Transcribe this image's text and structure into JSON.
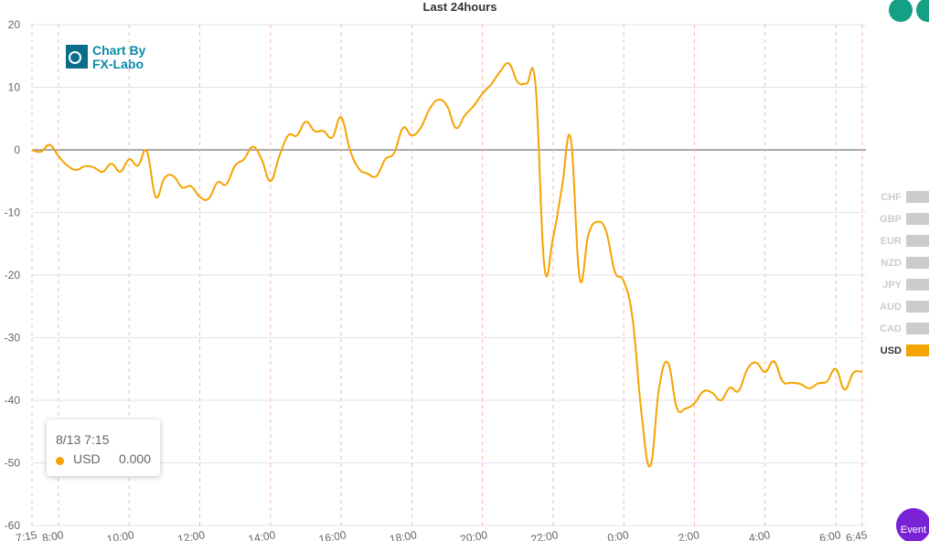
{
  "chart_data": {
    "type": "line",
    "title": "Last 24hours",
    "logo": [
      "Chart By",
      "FX-Labo"
    ],
    "x": [
      "7:15",
      "7:30",
      "7:45",
      "8:00",
      "8:15",
      "8:30",
      "8:45",
      "9:00",
      "9:15",
      "9:30",
      "9:45",
      "10:00",
      "10:15",
      "10:30",
      "10:45",
      "11:00",
      "11:15",
      "11:30",
      "11:45",
      "12:00",
      "12:15",
      "12:30",
      "12:45",
      "13:00",
      "13:15",
      "13:30",
      "13:45",
      "14:00",
      "14:15",
      "14:30",
      "14:45",
      "15:00",
      "15:15",
      "15:30",
      "15:45",
      "16:00",
      "16:15",
      "16:30",
      "16:45",
      "17:00",
      "17:15",
      "17:30",
      "17:45",
      "18:00",
      "18:15",
      "18:30",
      "18:45",
      "19:00",
      "19:15",
      "19:30",
      "19:45",
      "20:00",
      "20:15",
      "20:30",
      "20:45",
      "21:00",
      "21:15",
      "21:30",
      "21:45",
      "22:00",
      "22:15",
      "22:30",
      "22:45",
      "23:00",
      "23:15",
      "23:30",
      "23:45",
      "0:00",
      "0:15",
      "0:30",
      "0:45",
      "1:00",
      "1:15",
      "1:30",
      "1:45",
      "2:00",
      "2:15",
      "2:30",
      "2:45",
      "3:00",
      "3:15",
      "3:30",
      "3:45",
      "4:00",
      "4:15",
      "4:30",
      "4:45",
      "5:00",
      "5:15",
      "5:30",
      "5:45",
      "6:00",
      "6:15",
      "6:30",
      "6:45"
    ],
    "series": [
      {
        "name": "USD",
        "color": "#f5a300",
        "values": [
          0,
          -0.3,
          0.8,
          -1,
          -2.5,
          -3.2,
          -2.6,
          -2.8,
          -3.5,
          -2.2,
          -3.5,
          -1.5,
          -2.5,
          -0.2,
          -7.5,
          -4.5,
          -4.2,
          -6,
          -5.8,
          -7.5,
          -7.8,
          -5.2,
          -5.5,
          -2.5,
          -1.5,
          0.5,
          -1.5,
          -5,
          -1,
          2.3,
          2.3,
          4.5,
          3,
          3,
          2,
          5.2,
          0,
          -3,
          -3.8,
          -4.2,
          -1.5,
          -0.5,
          3.5,
          2.3,
          3.5,
          6.5,
          8,
          7,
          3.5,
          5.5,
          7,
          9,
          10.5,
          12.5,
          13.8,
          10.8,
          10.6,
          10.5,
          -18.5,
          -14,
          -6,
          1.8,
          -20.5,
          -13.5,
          -11.5,
          -13,
          -19.5,
          -21,
          -27,
          -42,
          -50.5,
          -38,
          -34,
          -41.2,
          -41.3,
          -40.5,
          -38.6,
          -38.8,
          -40,
          -38,
          -38.5,
          -35,
          -34,
          -35.5,
          -33.8,
          -37,
          -37.2,
          -37.4,
          -38.1,
          -37.3,
          -37,
          -35,
          -38.3,
          -35.6,
          -35.5
        ]
      }
    ],
    "inactive_series": [
      "CHF",
      "GBP",
      "EUR",
      "NZD",
      "JPY",
      "AUD",
      "CAD"
    ],
    "xticks": [
      "7:15",
      "8:00",
      "10:00",
      "12:00",
      "14:00",
      "16:00",
      "18:00",
      "20:00",
      "22:00",
      "0:00",
      "2:00",
      "4:00",
      "6:00",
      "6:45"
    ],
    "ylim": [
      -60,
      20
    ],
    "yticks": [
      20,
      10,
      0,
      -10,
      -20,
      -30,
      -40,
      -50,
      -60
    ],
    "grid": true,
    "tooltip": {
      "date": "8/13 7:15",
      "value": "0.000"
    },
    "event_button": "Event"
  }
}
